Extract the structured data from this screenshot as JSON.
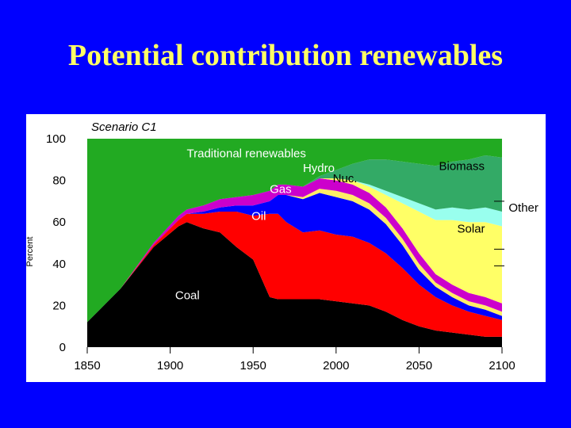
{
  "slide": {
    "title": "Potential contribution renewables"
  },
  "chart_data": {
    "type": "area",
    "title": "Scenario C1",
    "ylabel": "Percent",
    "xlabel": "",
    "xlim": [
      1850,
      2100
    ],
    "ylim": [
      0,
      100
    ],
    "x_ticks": [
      "1850",
      "1900",
      "1950",
      "2000",
      "2050",
      "2100"
    ],
    "y_ticks": [
      "0",
      "20",
      "40",
      "60",
      "80",
      "100"
    ],
    "stacked": true,
    "x": [
      1850,
      1870,
      1890,
      1905,
      1910,
      1920,
      1930,
      1940,
      1950,
      1960,
      1965,
      1970,
      1980,
      1990,
      2000,
      2010,
      2020,
      2030,
      2040,
      2050,
      2060,
      2070,
      2080,
      2090,
      2100
    ],
    "series": [
      {
        "name": "Coal",
        "color": "#000000",
        "values": [
          12,
          28,
          48,
          58,
          60,
          57,
          55,
          48,
          42,
          24,
          23,
          23,
          23,
          23,
          22,
          21,
          20,
          17,
          13,
          10,
          8,
          7,
          6,
          5,
          5
        ]
      },
      {
        "name": "Oil",
        "color": "#FF0000",
        "values": [
          0,
          0,
          1,
          3,
          4,
          7,
          10,
          17,
          21,
          40,
          41,
          37,
          32,
          33,
          32,
          32,
          30,
          28,
          25,
          20,
          16,
          13,
          11,
          10,
          8
        ]
      },
      {
        "name": "Gas",
        "color": "#0000FF",
        "values": [
          0,
          0,
          0,
          0,
          0,
          1,
          2,
          3,
          5,
          6,
          9,
          13,
          16,
          18,
          18,
          17,
          16,
          14,
          11,
          7,
          5,
          4,
          3,
          3,
          2
        ]
      },
      {
        "name": "Nuc.",
        "color": "#FFEE66",
        "values": [
          0,
          0,
          0,
          0,
          0,
          0,
          0,
          0,
          0,
          0,
          0,
          0,
          1,
          2,
          3,
          3,
          3,
          3,
          3,
          3,
          2,
          2,
          2,
          2,
          2
        ]
      },
      {
        "name": "Hydro",
        "color": "#CC00CC",
        "values": [
          0,
          0,
          1,
          2,
          2,
          3,
          4,
          4,
          5,
          5,
          5,
          5,
          5,
          5,
          5,
          5,
          5,
          5,
          5,
          5,
          4,
          4,
          4,
          4,
          4
        ]
      },
      {
        "name": "Solar",
        "color": "#FFFF66",
        "values": [
          0,
          0,
          0,
          0,
          0,
          0,
          0,
          0,
          0,
          0,
          0,
          0,
          0,
          0,
          1,
          2,
          3,
          6,
          12,
          20,
          26,
          31,
          34,
          36,
          37
        ]
      },
      {
        "name": "Other",
        "color": "#99FFEE",
        "values": [
          0,
          0,
          0,
          0,
          0,
          0,
          0,
          0,
          0,
          0,
          0,
          0,
          0,
          0,
          0,
          0,
          1,
          2,
          3,
          4,
          5,
          6,
          6,
          7,
          7
        ]
      },
      {
        "name": "Biomass",
        "color": "#33AA66",
        "values": [
          0,
          0,
          0,
          0,
          0,
          0,
          0,
          0,
          0,
          0,
          0,
          0,
          0,
          1,
          4,
          8,
          12,
          15,
          17,
          19,
          21,
          22,
          24,
          25,
          26
        ]
      },
      {
        "name": "Traditional renewables",
        "color": "#22AA22",
        "values": [
          88,
          72,
          50,
          37,
          34,
          32,
          29,
          28,
          27,
          25,
          22,
          22,
          23,
          18,
          15,
          12,
          10,
          10,
          11,
          12,
          13,
          11,
          10,
          8,
          9
        ]
      }
    ],
    "annotations": [
      {
        "text": "Traditional renewables",
        "x": 1910,
        "y": 91,
        "color": "#FFFFFF"
      },
      {
        "text": "Hydro",
        "x": 1980,
        "y": 84,
        "color": "#FFFFFF"
      },
      {
        "text": "Nuc.",
        "x": 1998,
        "y": 79,
        "color": "#000000"
      },
      {
        "text": "Gas",
        "x": 1960,
        "y": 74,
        "color": "#FFFFFF"
      },
      {
        "text": "Biomass",
        "x": 2062,
        "y": 85,
        "color": "#000000"
      },
      {
        "text": "Other",
        "x": 2104,
        "y": 65,
        "color": "#000000"
      },
      {
        "text": "Oil",
        "x": 1949,
        "y": 61,
        "color": "#FFFFFF"
      },
      {
        "text": "Solar",
        "x": 2073,
        "y": 55,
        "color": "#000000"
      },
      {
        "text": "Coal",
        "x": 1903,
        "y": 23,
        "color": "#FFFFFF"
      }
    ]
  }
}
